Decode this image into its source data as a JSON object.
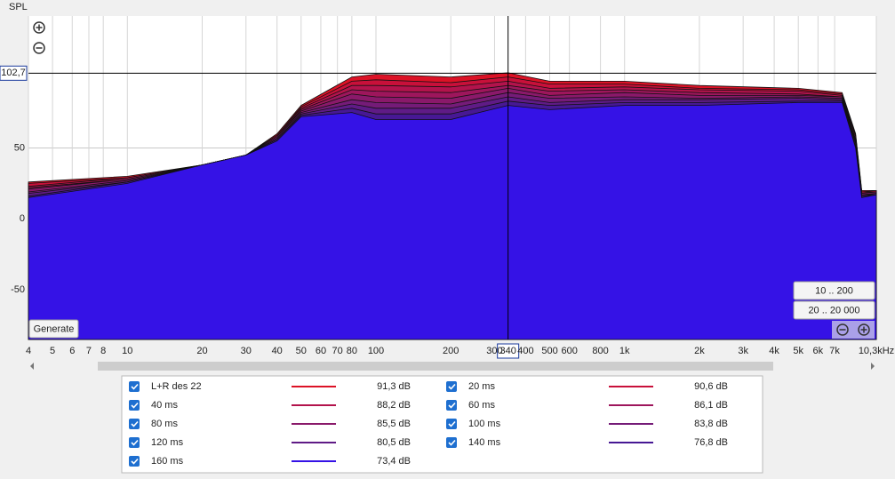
{
  "chart_data": {
    "type": "area",
    "y_label": "SPL",
    "log_x": true,
    "grid": true,
    "xlim": [
      4,
      10300
    ],
    "ylim": [
      -85,
      143
    ],
    "yticks": [
      50,
      0,
      -50
    ],
    "xticks": [
      4,
      5,
      6,
      7,
      8,
      10,
      20,
      30,
      40,
      50,
      60,
      70,
      80,
      100,
      200,
      300,
      400,
      500,
      600,
      800,
      {
        "value": 1000,
        "label": "1k"
      },
      {
        "value": 2000,
        "label": "2k"
      },
      {
        "value": 3000,
        "label": "3k"
      },
      {
        "value": 4000,
        "label": "4k"
      },
      {
        "value": 5000,
        "label": "5k"
      },
      {
        "value": 6000,
        "label": "6k"
      },
      {
        "value": 7000,
        "label": "7k"
      },
      {
        "value": 10300,
        "label": "10,3kHz"
      }
    ],
    "cursor": {
      "x": 340,
      "y": {
        "value": 102.7,
        "label": "102,7"
      }
    },
    "x": [
      4,
      10,
      20,
      30,
      40,
      50,
      80,
      100,
      200,
      340,
      500,
      1000,
      2000,
      5000,
      7500,
      8500,
      9000,
      10300
    ],
    "series": [
      {
        "name": "L+R des 22",
        "level": "91,3 dB",
        "color": "#dc1226",
        "values": [
          26,
          30,
          38,
          45,
          60,
          80,
          100,
          102,
          100,
          103,
          97,
          97,
          94,
          92,
          89,
          60,
          20,
          20
        ]
      },
      {
        "name": "20 ms",
        "level": "90,6 dB",
        "color": "#c8103a",
        "values": [
          25,
          29,
          38,
          45,
          59,
          79,
          97,
          98,
          96,
          100,
          95,
          95,
          92,
          91,
          88,
          59,
          19,
          20
        ]
      },
      {
        "name": "40 ms",
        "level": "88,2 dB",
        "color": "#b3134c",
        "values": [
          23,
          29,
          38,
          45,
          59,
          78,
          94,
          94,
          93,
          97,
          92,
          93,
          91,
          90,
          87,
          58,
          19,
          19
        ]
      },
      {
        "name": "60 ms",
        "level": "86,1 dB",
        "color": "#9e165c",
        "values": [
          22,
          28,
          38,
          45,
          58,
          77,
          91,
          90,
          89,
          94,
          90,
          91,
          89,
          88,
          86,
          56,
          18,
          19
        ]
      },
      {
        "name": "80 ms",
        "level": "85,5 dB",
        "color": "#8a196a",
        "values": [
          21,
          28,
          38,
          45,
          58,
          76,
          88,
          86,
          85,
          92,
          87,
          89,
          87,
          87,
          86,
          55,
          18,
          19
        ]
      },
      {
        "name": "100 ms",
        "level": "83,8 dB",
        "color": "#751b78",
        "values": [
          19,
          27,
          38,
          45,
          57,
          75,
          84,
          82,
          81,
          89,
          85,
          86,
          85,
          86,
          85,
          54,
          17,
          18
        ]
      },
      {
        "name": "120 ms",
        "level": "80,5 dB",
        "color": "#5f1b86",
        "values": [
          18,
          26,
          38,
          45,
          56,
          74,
          81,
          78,
          78,
          86,
          82,
          84,
          84,
          85,
          84,
          53,
          16,
          18
        ]
      },
      {
        "name": "140 ms",
        "level": "76,8 dB",
        "color": "#471894",
        "values": [
          16,
          26,
          38,
          45,
          56,
          73,
          78,
          74,
          74,
          83,
          80,
          82,
          82,
          83,
          83,
          51,
          16,
          17
        ]
      },
      {
        "name": "160 ms",
        "level": "73,4 dB",
        "color": "#3512e6",
        "values": [
          15,
          25,
          38,
          45,
          55,
          72,
          75,
          70,
          70,
          80,
          77,
          80,
          80,
          82,
          82,
          50,
          15,
          17
        ]
      }
    ]
  },
  "buttons": {
    "generate": "Generate",
    "range_low": "10 .. 200",
    "range_full": "20 .. 20 000"
  }
}
